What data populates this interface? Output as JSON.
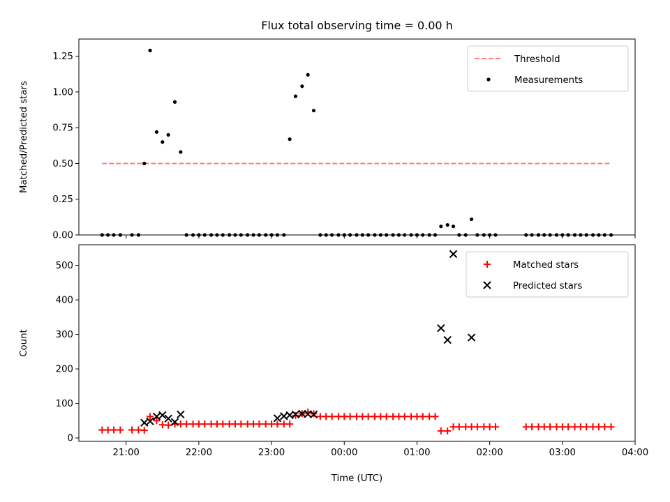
{
  "chart_data": [
    {
      "type": "scatter",
      "title": "Flux total observing time = 0.00 h",
      "xlabel": "",
      "ylabel": "Matched/Predicted stars",
      "xlim": [
        -3.65,
        4.0
      ],
      "ylim": [
        0.0,
        1.37
      ],
      "xticks": [
        "21:00",
        "22:00",
        "23:00",
        "00:00",
        "01:00",
        "02:00",
        "03:00",
        "04:00"
      ],
      "xtick_values": [
        -3,
        -2,
        -1,
        0,
        1,
        2,
        3,
        4
      ],
      "xtick_labels_visible": false,
      "yticks": [
        "0.00",
        "0.25",
        "0.50",
        "0.75",
        "1.00",
        "1.25"
      ],
      "ytick_values": [
        0,
        0.25,
        0.5,
        0.75,
        1.0,
        1.25
      ],
      "legend_position": "top-right",
      "grid": false,
      "series": [
        {
          "name": "Threshold",
          "kind": "dashed-line",
          "color": "#ff7f7f",
          "x": [
            -3.33,
            3.67
          ],
          "y": [
            0.5,
            0.5
          ]
        },
        {
          "name": "Measurements",
          "kind": "dots",
          "color": "#000000",
          "x": [
            -3.33,
            -3.25,
            -3.17,
            -3.08,
            -2.92,
            -2.83,
            -2.75,
            -2.67,
            -2.58,
            -2.5,
            -2.42,
            -2.33,
            -2.25,
            -2.17,
            -2.08,
            -2.0,
            -1.92,
            -1.83,
            -1.75,
            -1.67,
            -1.58,
            -1.5,
            -1.42,
            -1.33,
            -1.25,
            -1.17,
            -1.08,
            -1.0,
            -0.92,
            -0.83,
            -0.75,
            -0.67,
            -0.58,
            -0.5,
            -0.42,
            -0.33,
            -0.25,
            -0.17,
            -0.08,
            0.0,
            0.08,
            0.17,
            0.25,
            0.33,
            0.42,
            0.5,
            0.58,
            0.67,
            0.75,
            0.83,
            0.92,
            1.0,
            1.08,
            1.17,
            1.25,
            1.33,
            1.42,
            1.5,
            1.58,
            1.67,
            1.75,
            1.83,
            1.92,
            2.0,
            2.08,
            2.5,
            2.58,
            2.67,
            2.75,
            2.83,
            2.92,
            3.0,
            3.08,
            3.17,
            3.25,
            3.33,
            3.42,
            3.5,
            3.58,
            3.67
          ],
          "y": [
            0.0,
            0.0,
            0.0,
            0.0,
            0.0,
            0.0,
            0.5,
            1.29,
            0.72,
            0.65,
            0.7,
            0.93,
            0.58,
            0.0,
            0.0,
            0.0,
            0.0,
            0.0,
            0.0,
            0.0,
            0.0,
            0.0,
            0.0,
            0.0,
            0.0,
            0.0,
            0.0,
            0.0,
            0.0,
            0.0,
            0.67,
            0.97,
            1.04,
            1.12,
            0.87,
            0.0,
            0.0,
            0.0,
            0.0,
            0.0,
            0.0,
            0.0,
            0.0,
            0.0,
            0.0,
            0.0,
            0.0,
            0.0,
            0.0,
            0.0,
            0.0,
            0.0,
            0.0,
            0.0,
            0.0,
            0.06,
            0.07,
            0.06,
            0.0,
            0.0,
            0.11,
            0.0,
            0.0,
            0.0,
            0.0,
            0.0,
            0.0,
            0.0,
            0.0,
            0.0,
            0.0,
            0.0,
            0.0,
            0.0,
            0.0,
            0.0,
            0.0,
            0.0,
            0.0,
            0.0
          ]
        }
      ]
    },
    {
      "type": "scatter",
      "title": "",
      "xlabel": "Time (UTC)",
      "ylabel": "Count",
      "xlim": [
        -3.65,
        4.0
      ],
      "ylim": [
        -10,
        560
      ],
      "xticks": [
        "21:00",
        "22:00",
        "23:00",
        "00:00",
        "01:00",
        "02:00",
        "03:00",
        "04:00"
      ],
      "xtick_values": [
        -3,
        -2,
        -1,
        0,
        1,
        2,
        3,
        4
      ],
      "yticks": [
        "0",
        "100",
        "200",
        "300",
        "400",
        "500"
      ],
      "ytick_values": [
        0,
        100,
        200,
        300,
        400,
        500
      ],
      "legend_position": "top-right",
      "grid": false,
      "series": [
        {
          "name": "Matched stars",
          "kind": "plus",
          "color": "#ff0000",
          "x": [
            -3.33,
            -3.25,
            -3.17,
            -3.08,
            -2.92,
            -2.83,
            -2.75,
            -2.67,
            -2.58,
            -2.5,
            -2.42,
            -2.33,
            -2.25,
            -2.17,
            -2.08,
            -2.0,
            -1.92,
            -1.83,
            -1.75,
            -1.67,
            -1.58,
            -1.5,
            -1.42,
            -1.33,
            -1.25,
            -1.17,
            -1.08,
            -1.0,
            -0.92,
            -0.83,
            -0.75,
            -0.67,
            -0.58,
            -0.5,
            -0.42,
            -0.33,
            -0.25,
            -0.17,
            -0.08,
            0.0,
            0.08,
            0.17,
            0.25,
            0.33,
            0.42,
            0.5,
            0.58,
            0.67,
            0.75,
            0.83,
            0.92,
            1.0,
            1.08,
            1.17,
            1.25,
            1.33,
            1.42,
            1.5,
            1.58,
            1.67,
            1.75,
            1.83,
            1.92,
            2.0,
            2.08,
            2.5,
            2.58,
            2.67,
            2.75,
            2.83,
            2.92,
            3.0,
            3.08,
            3.17,
            3.25,
            3.33,
            3.42,
            3.5,
            3.58,
            3.67
          ],
          "y": [
            23,
            23,
            23,
            23,
            23,
            23,
            22,
            62,
            50,
            38,
            37,
            40,
            40,
            40,
            40,
            40,
            40,
            40,
            40,
            40,
            40,
            40,
            40,
            40,
            40,
            40,
            40,
            40,
            40,
            40,
            40,
            65,
            70,
            75,
            70,
            62,
            62,
            62,
            62,
            62,
            62,
            62,
            62,
            62,
            62,
            62,
            62,
            62,
            62,
            62,
            62,
            62,
            62,
            62,
            62,
            20,
            20,
            32,
            32,
            32,
            32,
            32,
            32,
            32,
            32,
            32,
            32,
            32,
            32,
            32,
            32,
            32,
            32,
            32,
            32,
            32,
            32,
            32,
            32,
            32
          ]
        },
        {
          "name": "Predicted stars",
          "kind": "x",
          "color": "#000000",
          "x": [
            -2.75,
            -2.67,
            -2.58,
            -2.5,
            -2.42,
            -2.33,
            -2.25,
            -0.92,
            -0.83,
            -0.75,
            -0.67,
            -0.58,
            -0.5,
            -0.42,
            1.33,
            1.42,
            1.5,
            1.75
          ],
          "y": [
            44,
            48,
            62,
            66,
            56,
            46,
            68,
            57,
            63,
            66,
            68,
            70,
            69,
            68,
            318,
            284,
            533,
            291
          ]
        }
      ]
    }
  ]
}
